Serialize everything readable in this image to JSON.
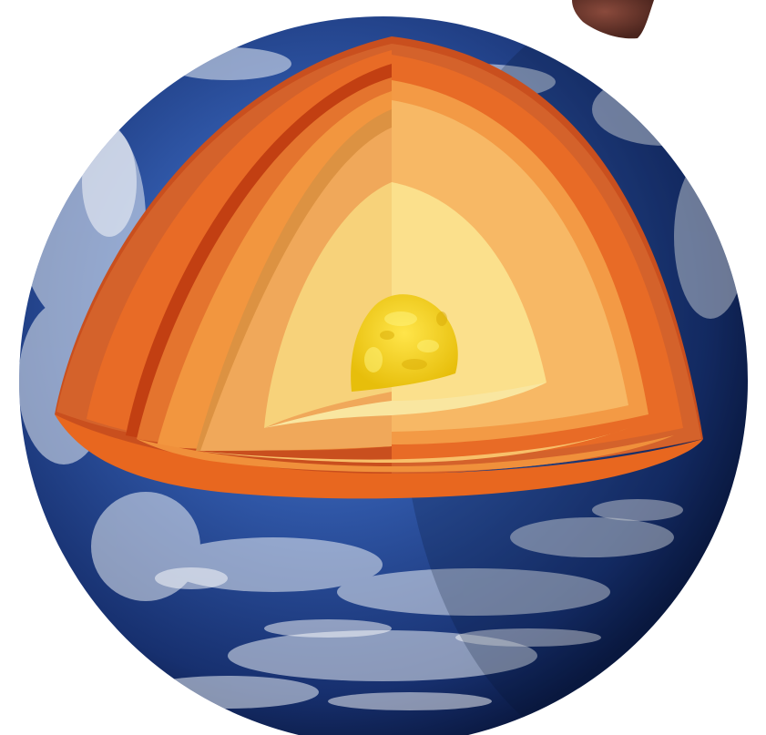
{
  "image": {
    "subject": "earth-cutaway",
    "colors": {
      "background": "#ffffff",
      "ocean_deep": "#10245c",
      "ocean_mid": "#2f56a6",
      "ocean_light": "#5f86c8",
      "cloud": "#e9eef5",
      "crust_outer": "#d4622b",
      "crust_band": "#c23f12",
      "mantle_outer": "#e86b26",
      "mantle_mid": "#f2963f",
      "mantle_inner": "#f7b865",
      "outer_core": "#f9d77e",
      "inner_core_base": "#f5d56a",
      "inner_core": "#f1cc12",
      "inner_core_highlight": "#ffe54a",
      "moon": "#5a2d25"
    }
  }
}
